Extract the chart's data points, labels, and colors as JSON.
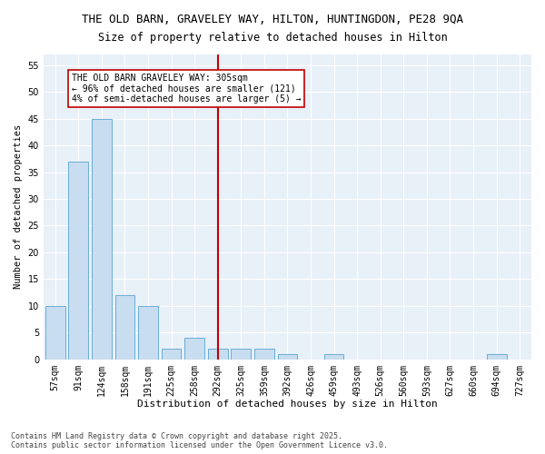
{
  "title": "THE OLD BARN, GRAVELEY WAY, HILTON, HUNTINGDON, PE28 9QA",
  "subtitle": "Size of property relative to detached houses in Hilton",
  "xlabel": "Distribution of detached houses by size in Hilton",
  "ylabel": "Number of detached properties",
  "categories": [
    "57sqm",
    "91sqm",
    "124sqm",
    "158sqm",
    "191sqm",
    "225sqm",
    "258sqm",
    "292sqm",
    "325sqm",
    "359sqm",
    "392sqm",
    "426sqm",
    "459sqm",
    "493sqm",
    "526sqm",
    "560sqm",
    "593sqm",
    "627sqm",
    "660sqm",
    "694sqm",
    "727sqm"
  ],
  "values": [
    10,
    37,
    45,
    12,
    10,
    2,
    4,
    2,
    2,
    2,
    1,
    0,
    1,
    0,
    0,
    0,
    0,
    0,
    0,
    1,
    0
  ],
  "bar_color": "#c8ddf0",
  "bar_edge_color": "#6aaed6",
  "highlight_index": 7,
  "vline_color": "#c00000",
  "annotation_line1": "THE OLD BARN GRAVELEY WAY: 305sqm",
  "annotation_line2": "← 96% of detached houses are smaller (121)",
  "annotation_line3": "4% of semi-detached houses are larger (5) →",
  "annotation_box_edge_color": "#c00000",
  "ylim": [
    0,
    57
  ],
  "yticks": [
    0,
    5,
    10,
    15,
    20,
    25,
    30,
    35,
    40,
    45,
    50,
    55
  ],
  "footer_line1": "Contains HM Land Registry data © Crown copyright and database right 2025.",
  "footer_line2": "Contains public sector information licensed under the Open Government Licence v3.0.",
  "bg_color": "#ffffff",
  "plot_bg_color": "#e8f0f8",
  "title_fontsize": 9,
  "subtitle_fontsize": 8.5,
  "tick_fontsize": 7,
  "ylabel_fontsize": 7.5,
  "xlabel_fontsize": 8,
  "footer_fontsize": 6,
  "annotation_fontsize": 7
}
